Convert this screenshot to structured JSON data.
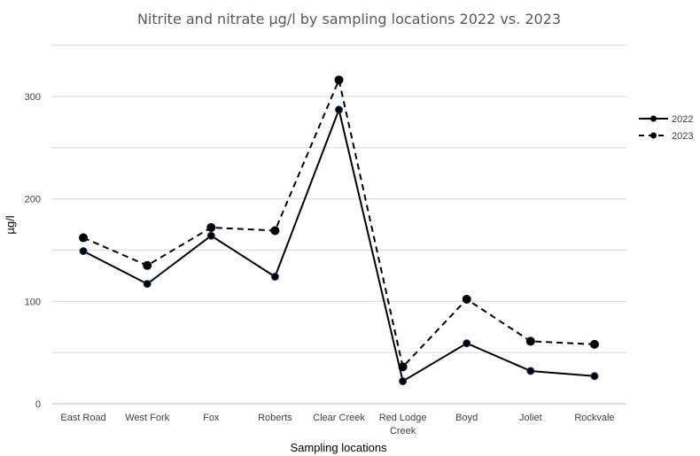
{
  "chart_data": {
    "type": "line",
    "title": "Nitrite and nitrate µg/l by sampling locations 2022 vs. 2023",
    "xlabel": "Sampling locations",
    "ylabel": "µg/l",
    "ylim": [
      0,
      350
    ],
    "yticks": [
      0,
      100,
      200,
      300
    ],
    "grid": true,
    "legend_position": "right",
    "categories": [
      "East Road",
      "West Fork",
      "Fox",
      "Roberts",
      "Clear Creek",
      "Red Lodge Creek",
      "Boyd",
      "Joliet",
      "Rockvale"
    ],
    "series": [
      {
        "name": "2022",
        "line_style": "solid",
        "values": [
          149,
          117,
          164,
          124,
          287,
          22,
          59,
          32,
          27
        ]
      },
      {
        "name": "2023",
        "line_style": "dashed",
        "values": [
          162,
          135,
          172,
          169,
          316,
          36,
          102,
          61,
          58
        ]
      }
    ]
  }
}
